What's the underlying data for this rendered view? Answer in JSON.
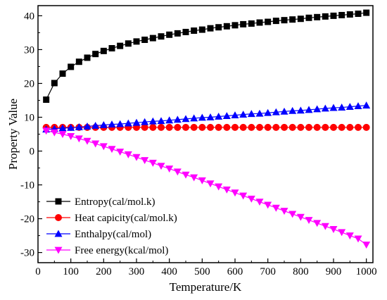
{
  "chart_data": {
    "type": "line",
    "title": "",
    "xlabel": "Temperature/K",
    "ylabel": "Property Value",
    "xlim": [
      0,
      1020
    ],
    "ylim": [
      -33,
      43
    ],
    "xticks": [
      0,
      100,
      200,
      300,
      400,
      500,
      600,
      700,
      800,
      900,
      1000
    ],
    "yticks": [
      -30,
      -20,
      -10,
      0,
      10,
      20,
      30,
      40
    ],
    "grid": false,
    "legend": "bottom-left",
    "x": [
      25,
      50,
      75,
      100,
      125,
      150,
      175,
      200,
      225,
      250,
      275,
      300,
      325,
      350,
      375,
      400,
      425,
      450,
      475,
      500,
      525,
      550,
      575,
      600,
      625,
      650,
      675,
      700,
      725,
      750,
      775,
      800,
      825,
      850,
      875,
      900,
      925,
      950,
      975,
      1000
    ],
    "series": [
      {
        "name": "Entropy(cal/mol.k)",
        "color": "#000000",
        "marker": "square",
        "values": [
          15.2,
          20.1,
          22.9,
          24.9,
          26.4,
          27.6,
          28.7,
          29.6,
          30.4,
          31.1,
          31.8,
          32.4,
          32.9,
          33.4,
          33.9,
          34.4,
          34.8,
          35.2,
          35.6,
          35.9,
          36.3,
          36.6,
          36.9,
          37.2,
          37.5,
          37.7,
          38.0,
          38.2,
          38.5,
          38.7,
          38.9,
          39.1,
          39.4,
          39.6,
          39.8,
          40.0,
          40.2,
          40.4,
          40.6,
          40.9
        ]
      },
      {
        "name": "Heat capicity(cal/mol.k)",
        "color": "#ff0000",
        "marker": "circle",
        "values": [
          7.0,
          7.0,
          7.0,
          7.0,
          7.0,
          7.0,
          7.0,
          7.0,
          7.0,
          7.0,
          7.0,
          7.0,
          7.0,
          7.0,
          7.0,
          7.0,
          7.0,
          7.0,
          7.0,
          7.0,
          7.0,
          7.0,
          7.0,
          7.0,
          7.0,
          7.0,
          7.0,
          7.0,
          7.0,
          7.0,
          7.0,
          7.0,
          7.0,
          7.0,
          7.0,
          7.0,
          7.0,
          7.0,
          7.0,
          7.0
        ]
      },
      {
        "name": "Enthalpy(cal/mol)",
        "color": "#0000ff",
        "marker": "triangle-up",
        "values": [
          6.4,
          6.6,
          6.8,
          6.9,
          7.1,
          7.3,
          7.5,
          7.7,
          7.9,
          8.0,
          8.2,
          8.4,
          8.6,
          8.8,
          8.9,
          9.1,
          9.3,
          9.5,
          9.7,
          9.9,
          10.0,
          10.2,
          10.4,
          10.6,
          10.8,
          11.0,
          11.1,
          11.3,
          11.5,
          11.7,
          11.9,
          12.0,
          12.2,
          12.4,
          12.6,
          12.8,
          12.9,
          13.1,
          13.3,
          13.5
        ]
      },
      {
        "name": "Free energy(kcal/mol)",
        "color": "#ff00ff",
        "marker": "triangle-down",
        "values": [
          6.0,
          5.5,
          5.0,
          4.4,
          3.7,
          3.0,
          2.2,
          1.4,
          0.6,
          -0.2,
          -1.0,
          -1.8,
          -2.7,
          -3.5,
          -4.4,
          -5.2,
          -6.1,
          -7.0,
          -7.8,
          -8.7,
          -9.6,
          -10.5,
          -11.4,
          -12.3,
          -13.2,
          -14.1,
          -15.0,
          -15.9,
          -16.8,
          -17.7,
          -18.6,
          -19.5,
          -20.4,
          -21.3,
          -22.2,
          -23.1,
          -24.0,
          -25.0,
          -25.9,
          -27.7
        ]
      }
    ]
  }
}
